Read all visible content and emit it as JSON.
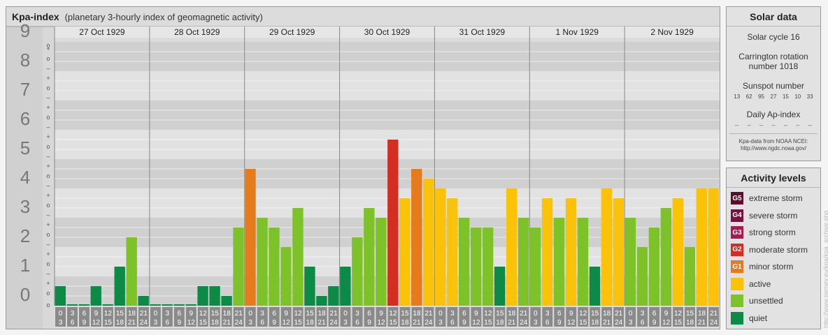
{
  "title": "Kpa-index",
  "subtitle": "(planetary 3-hourly index of geomagnetic activity)",
  "chart_data": {
    "type": "bar",
    "ylim": [
      0,
      9
    ],
    "y_ticks": [
      "0",
      "1",
      "2",
      "3",
      "4",
      "5",
      "6",
      "7",
      "8",
      "9"
    ],
    "sub_ticks": [
      "–",
      "o",
      "+"
    ],
    "days": [
      "27 Oct 1929",
      "28 Oct 1929",
      "29 Oct 1929",
      "30 Oct 1929",
      "31 Oct 1929",
      "1 Nov 1929",
      "2 Nov 1929"
    ],
    "interval_labels": [
      [
        "0",
        "3"
      ],
      [
        "3",
        "6"
      ],
      [
        "6",
        "9"
      ],
      [
        "9",
        "12"
      ],
      [
        "12",
        "15"
      ],
      [
        "15",
        "18"
      ],
      [
        "18",
        "21"
      ],
      [
        "21",
        "24"
      ]
    ],
    "values": [
      [
        0.667,
        0.0,
        0.0,
        0.667,
        0.0,
        1.333,
        2.333,
        0.333
      ],
      [
        0.0,
        0.0,
        0.0,
        0.0,
        0.667,
        0.667,
        0.333,
        2.667
      ],
      [
        4.667,
        3.0,
        2.667,
        2.0,
        3.333,
        1.333,
        0.333,
        0.667
      ],
      [
        1.333,
        2.333,
        3.333,
        3.0,
        5.667,
        3.667,
        4.667,
        4.333
      ],
      [
        4.0,
        3.667,
        3.0,
        2.667,
        2.667,
        1.333,
        4.0,
        3.0
      ],
      [
        2.667,
        3.667,
        3.0,
        3.667,
        3.0,
        1.333,
        4.0,
        3.667
      ],
      [
        3.0,
        2.0,
        2.667,
        3.333,
        3.667,
        2.0,
        4.0,
        4.0
      ]
    ]
  },
  "solar": {
    "header": "Solar data",
    "cycle": "Solar cycle 16",
    "carrington_1": "Carrington rotation",
    "carrington_2": "number 1018",
    "sunspot_label": "Sunspot number",
    "sunspot_values": [
      "13",
      "62",
      "95",
      "27",
      "15",
      "10",
      "33"
    ],
    "ap_label": "Daily Ap-index",
    "ap_values": [
      "--",
      "--",
      "--",
      "--",
      "--",
      "--",
      "--"
    ],
    "source_1": "Kpa-data from NOAA NCEI:",
    "source_2": "http://www.ngdc.noaa.gov/"
  },
  "activity": {
    "header": "Activity levels",
    "levels": [
      {
        "code": "G5",
        "label": "extreme storm",
        "color": "#5c0c2e"
      },
      {
        "code": "G4",
        "label": "severe storm",
        "color": "#7a1040"
      },
      {
        "code": "G3",
        "label": "strong storm",
        "color": "#a51c52"
      },
      {
        "code": "G2",
        "label": "moderate storm",
        "color": "#d42e22"
      },
      {
        "code": "G1",
        "label": "minor storm",
        "color": "#e57b1c"
      },
      {
        "code": "",
        "label": "active",
        "color": "#fac30a"
      },
      {
        "code": "",
        "label": "unsettled",
        "color": "#7cc228"
      },
      {
        "code": "",
        "label": "quiet",
        "color": "#0c8a46"
      }
    ]
  },
  "watermark": "http://www.tierney.eu/kpa/kpa_archive.php"
}
